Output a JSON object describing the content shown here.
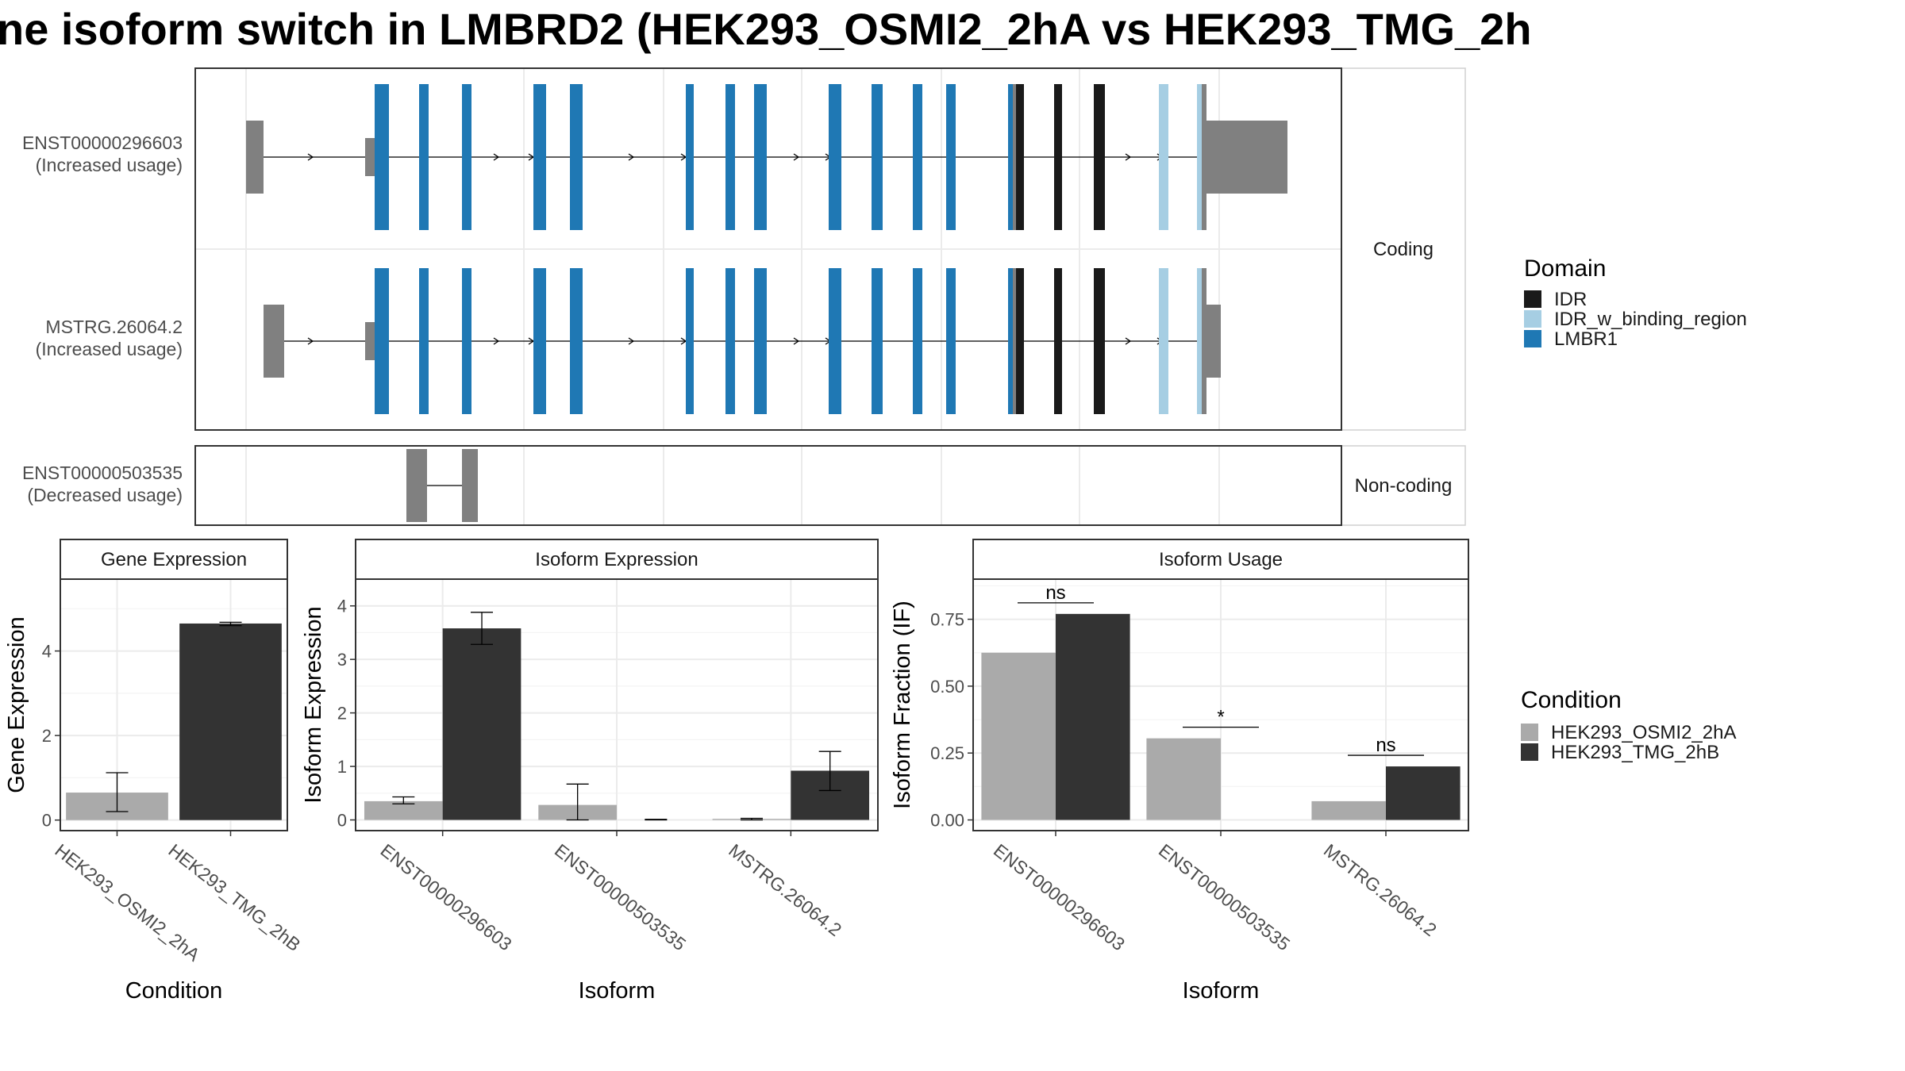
{
  "title": "ne isoform switch in LMBRD2 (HEK293_OSMI2_2hA vs HEK293_TMG_2h",
  "colors": {
    "IDR": "#1a1a1a",
    "IDR_w_binding_region": "#a6cee3",
    "LMBR1": "#1f78b4",
    "utr": "#808080",
    "cond1": "#aaaaaa",
    "cond2": "#333333"
  },
  "chart_data": [
    {
      "type": "gene-structure",
      "facets": [
        "Coding",
        "Non-coding"
      ],
      "legend_title": "Domain",
      "legend": [
        "IDR",
        "IDR_w_binding_region",
        "LMBR1"
      ],
      "transcripts": [
        {
          "id": "ENST00000296603",
          "status": "(Increased usage)",
          "facet": "Coding"
        },
        {
          "id": "MSTRG.26064.2",
          "status": "(Increased usage)",
          "facet": "Coding"
        },
        {
          "id": "ENST00000503535",
          "status": "(Decreased usage)",
          "facet": "Non-coding"
        }
      ]
    },
    {
      "type": "bar",
      "title": "Gene Expression",
      "xlabel": "Condition",
      "ylabel": "Gene Expression",
      "ylim": [
        -0.25,
        5.7
      ],
      "yticks": [
        0,
        2,
        4
      ],
      "categories": [
        "HEK293_OSMI2_2hA",
        "HEK293_TMG_2hB"
      ],
      "values": [
        0.65,
        4.65
      ],
      "errors": [
        [
          0.2,
          1.12
        ],
        [
          4.6,
          4.68
        ]
      ]
    },
    {
      "type": "bar",
      "title": "Isoform Expression",
      "xlabel": "Isoform",
      "ylabel": "Isoform Expression",
      "ylim": [
        -0.2,
        4.5
      ],
      "yticks": [
        0,
        1,
        2,
        3,
        4
      ],
      "categories": [
        "ENST00000296603",
        "ENST00000503535",
        "MSTRG.26064.2"
      ],
      "series": [
        {
          "name": "HEK293_OSMI2_2hA",
          "values": [
            0.35,
            0.28,
            0.02
          ],
          "errors": [
            [
              0.3,
              0.43
            ],
            [
              0.0,
              0.67
            ],
            [
              0.0,
              0.03
            ]
          ]
        },
        {
          "name": "HEK293_TMG_2hB",
          "values": [
            3.58,
            0.0,
            0.92
          ],
          "errors": [
            [
              3.28,
              3.88
            ],
            [
              0.0,
              0.01
            ],
            [
              0.55,
              1.28
            ]
          ]
        }
      ]
    },
    {
      "type": "bar",
      "title": "Isoform Usage",
      "xlabel": "Isoform",
      "ylabel": "Isoform Fraction (IF)",
      "ylim": [
        -0.04,
        0.9
      ],
      "yticks": [
        "0.00",
        "0.25",
        "0.50",
        "0.75"
      ],
      "categories": [
        "ENST00000296603",
        "ENST00000503535",
        "MSTRG.26064.2"
      ],
      "series": [
        {
          "name": "HEK293_OSMI2_2hA",
          "values": [
            0.625,
            0.305,
            0.07
          ]
        },
        {
          "name": "HEK293_TMG_2hB",
          "values": [
            0.77,
            0.0,
            0.2
          ]
        }
      ],
      "significance": [
        "ns",
        "*",
        "ns"
      ]
    }
  ],
  "condition_legend": {
    "title": "Condition",
    "items": [
      "HEK293_OSMI2_2hA",
      "HEK293_TMG_2hB"
    ]
  }
}
